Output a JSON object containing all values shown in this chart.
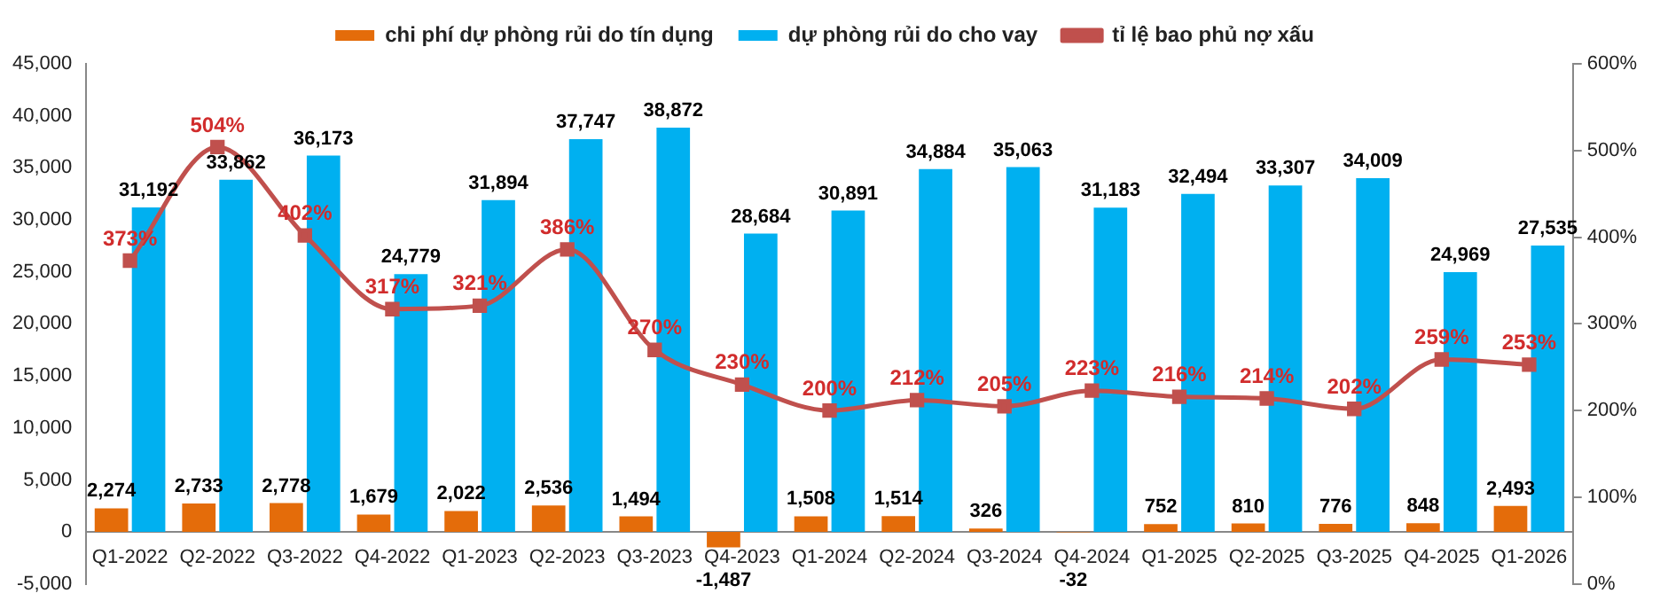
{
  "chart_data": {
    "type": "bar",
    "categories": [
      "Q1-2022",
      "Q2-2022",
      "Q3-2022",
      "Q4-2022",
      "Q1-2023",
      "Q2-2023",
      "Q3-2023",
      "Q4-2023",
      "Q1-2024",
      "Q2-2024",
      "Q3-2024",
      "Q4-2024",
      "Q1-2025",
      "Q2-2025",
      "Q3-2025",
      "Q4-2025",
      "Q1-2026"
    ],
    "series": [
      {
        "name": "chi phí dự phòng rủi do tín dụng",
        "color": "#e46c0a",
        "values": [
          2274,
          2733,
          2778,
          1679,
          2022,
          2536,
          1494,
          -1487,
          1508,
          1514,
          326,
          -32,
          752,
          810,
          776,
          848,
          2493
        ],
        "value_labels": [
          "2,274",
          "2,733",
          "2,778",
          "1,679",
          "2,022",
          "2,536",
          "1,494",
          "-1,487",
          "1,508",
          "1,514",
          "326",
          "-32",
          "752",
          "810",
          "776",
          "848",
          "2,493"
        ]
      },
      {
        "name": "dự phòng rủi do cho vay",
        "color": "#00b0f0",
        "values": [
          31192,
          33862,
          36173,
          24779,
          31894,
          37747,
          38872,
          28684,
          30891,
          34884,
          35063,
          31183,
          32494,
          33307,
          34009,
          24969,
          27535
        ],
        "value_labels": [
          "31,192",
          "33,862",
          "36,173",
          "24,779",
          "31,894",
          "37,747",
          "38,872",
          "28,684",
          "30,891",
          "34,884",
          "35,063",
          "31,183",
          "32,494",
          "33,307",
          "34,009",
          "24,969",
          "27,535"
        ]
      },
      {
        "name": "tỉ lệ bao phủ nợ xấu",
        "type": "line",
        "axis": "y2",
        "color": "#c0504d",
        "marker": "square",
        "values": [
          373,
          504,
          402,
          317,
          321,
          386,
          270,
          230,
          200,
          212,
          205,
          223,
          216,
          214,
          202,
          259,
          253
        ],
        "value_labels": [
          "373%",
          "504%",
          "402%",
          "317%",
          "321%",
          "386%",
          "270%",
          "230%",
          "200%",
          "212%",
          "205%",
          "223%",
          "216%",
          "214%",
          "202%",
          "259%",
          "253%"
        ]
      }
    ],
    "ylim": [
      -5000,
      45000
    ],
    "yticks": [
      {
        "value": -5000,
        "label": "-5,000"
      },
      {
        "value": 0,
        "label": "0"
      },
      {
        "value": 5000,
        "label": "5,000"
      },
      {
        "value": 10000,
        "label": "10,000"
      },
      {
        "value": 15000,
        "label": "15,000"
      },
      {
        "value": 20000,
        "label": "20,000"
      },
      {
        "value": 25000,
        "label": "25,000"
      },
      {
        "value": 30000,
        "label": "30,000"
      },
      {
        "value": 35000,
        "label": "35,000"
      },
      {
        "value": 40000,
        "label": "40,000"
      },
      {
        "value": 45000,
        "label": "45,000"
      }
    ],
    "y2lim": [
      0,
      600
    ],
    "y2ticks": [
      {
        "value": 0,
        "label": "0%"
      },
      {
        "value": 100,
        "label": "100%"
      },
      {
        "value": 200,
        "label": "200%"
      },
      {
        "value": 300,
        "label": "300%"
      },
      {
        "value": 400,
        "label": "400%"
      },
      {
        "value": 500,
        "label": "500%"
      },
      {
        "value": 600,
        "label": "600%"
      }
    ],
    "grid": false,
    "legend": "top",
    "line_style": "solid"
  }
}
